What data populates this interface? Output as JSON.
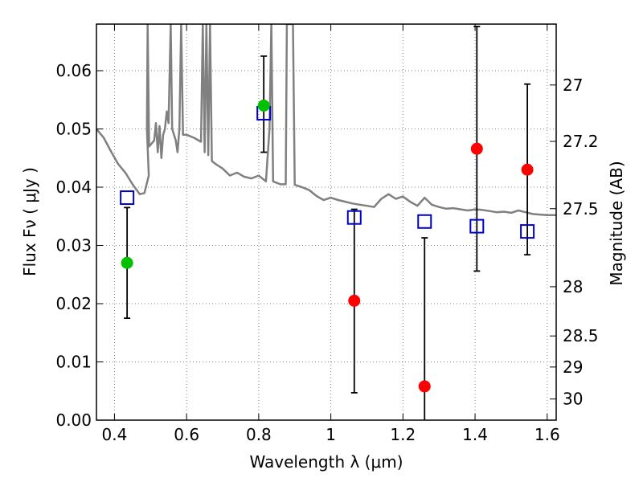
{
  "chart_data": {
    "type": "scatter",
    "xlabel": "Wavelength  λ (μm)",
    "ylabel": "Flux  Fν  ( μJy )",
    "y2label": "Magnitude (AB)",
    "xlim": [
      0.35,
      1.625
    ],
    "ylim": [
      0.0,
      0.068
    ],
    "grid": true,
    "x_ticks": [
      0.4,
      0.6,
      0.8,
      1.0,
      1.2,
      1.4,
      1.6
    ],
    "x_tick_labels": [
      "0.4",
      "0.6",
      "0.8",
      "1",
      "1.2",
      "1.4",
      "1.6"
    ],
    "y_ticks": [
      0.0,
      0.01,
      0.02,
      0.03,
      0.04,
      0.05,
      0.06
    ],
    "y_tick_labels": [
      "0.00",
      "0.01",
      "0.02",
      "0.03",
      "0.04",
      "0.05",
      "0.06"
    ],
    "mag_ticks": [
      27,
      27.2,
      27.5,
      28,
      28.5,
      29,
      30
    ],
    "mag_tick_labels": [
      "27",
      "27.2",
      "27.5",
      "28",
      "28.5",
      "29",
      "30"
    ],
    "colors": {
      "spectrum": "#808080",
      "green_points": "#00c000",
      "red_points": "#ff0000",
      "model_squares": "#0000cc",
      "errorbar": "#000000",
      "grid": "#808080"
    },
    "series": [
      {
        "marker": "circle",
        "color": "green",
        "points": [
          {
            "x": 0.435,
            "y": 0.027,
            "yerr_low": 0.0175,
            "yerr_high": 0.0365
          },
          {
            "x": 0.814,
            "y": 0.054,
            "yerr_low": 0.046,
            "yerr_high": 0.0625
          }
        ]
      },
      {
        "marker": "circle",
        "color": "red",
        "points": [
          {
            "x": 1.065,
            "y": 0.0205,
            "yerr_low": 0.0047,
            "yerr_high": 0.0362
          },
          {
            "x": 1.26,
            "y": 0.0058,
            "yerr_low": 0.0,
            "yerr_high": 0.0313
          },
          {
            "x": 1.405,
            "y": 0.0466,
            "yerr_low": 0.0256,
            "yerr_high": 0.0676
          },
          {
            "x": 1.545,
            "y": 0.043,
            "yerr_low": 0.0284,
            "yerr_high": 0.0577
          }
        ]
      },
      {
        "marker": "open-square",
        "color": "blue",
        "points": [
          {
            "x": 0.435,
            "y": 0.0382
          },
          {
            "x": 0.814,
            "y": 0.0527
          },
          {
            "x": 1.065,
            "y": 0.0348
          },
          {
            "x": 1.26,
            "y": 0.0341
          },
          {
            "x": 1.405,
            "y": 0.0333
          },
          {
            "x": 1.545,
            "y": 0.0324
          }
        ]
      },
      {
        "type": "line",
        "color": "gray",
        "points": [
          [
            0.35,
            0.05
          ],
          [
            0.37,
            0.0485
          ],
          [
            0.39,
            0.0462
          ],
          [
            0.41,
            0.044
          ],
          [
            0.43,
            0.0425
          ],
          [
            0.45,
            0.0405
          ],
          [
            0.47,
            0.0388
          ],
          [
            0.483,
            0.039
          ],
          [
            0.495,
            0.042
          ],
          [
            0.49,
            0.05
          ],
          [
            0.492,
            0.068
          ],
          [
            0.496,
            0.047
          ],
          [
            0.51,
            0.048
          ],
          [
            0.515,
            0.051
          ],
          [
            0.52,
            0.046
          ],
          [
            0.525,
            0.0505
          ],
          [
            0.53,
            0.045
          ],
          [
            0.535,
            0.049
          ],
          [
            0.54,
            0.05
          ],
          [
            0.545,
            0.053
          ],
          [
            0.55,
            0.051
          ],
          [
            0.556,
            0.068
          ],
          [
            0.56,
            0.05
          ],
          [
            0.565,
            0.049
          ],
          [
            0.57,
            0.048
          ],
          [
            0.575,
            0.046
          ],
          [
            0.58,
            0.05
          ],
          [
            0.585,
            0.068
          ],
          [
            0.59,
            0.049
          ],
          [
            0.6,
            0.049
          ],
          [
            0.62,
            0.0485
          ],
          [
            0.64,
            0.0478
          ],
          [
            0.645,
            0.068
          ],
          [
            0.65,
            0.046
          ],
          [
            0.655,
            0.068
          ],
          [
            0.66,
            0.0455
          ],
          [
            0.665,
            0.068
          ],
          [
            0.67,
            0.0445
          ],
          [
            0.68,
            0.044
          ],
          [
            0.7,
            0.0432
          ],
          [
            0.72,
            0.042
          ],
          [
            0.74,
            0.0425
          ],
          [
            0.76,
            0.0418
          ],
          [
            0.78,
            0.0415
          ],
          [
            0.8,
            0.042
          ],
          [
            0.82,
            0.041
          ],
          [
            0.83,
            0.05
          ],
          [
            0.835,
            0.068
          ],
          [
            0.84,
            0.041
          ],
          [
            0.86,
            0.0405
          ],
          [
            0.875,
            0.0405
          ],
          [
            0.878,
            0.068
          ],
          [
            0.884,
            0.068
          ],
          [
            0.89,
            0.068
          ],
          [
            0.895,
            0.068
          ],
          [
            0.9,
            0.0404
          ],
          [
            0.92,
            0.04
          ],
          [
            0.94,
            0.0395
          ],
          [
            0.96,
            0.0385
          ],
          [
            0.98,
            0.0378
          ],
          [
            1.0,
            0.0382
          ],
          [
            1.02,
            0.0378
          ],
          [
            1.04,
            0.0375
          ],
          [
            1.06,
            0.0372
          ],
          [
            1.08,
            0.037
          ],
          [
            1.1,
            0.0368
          ],
          [
            1.12,
            0.0366
          ],
          [
            1.14,
            0.038
          ],
          [
            1.16,
            0.0388
          ],
          [
            1.18,
            0.038
          ],
          [
            1.2,
            0.0384
          ],
          [
            1.22,
            0.0375
          ],
          [
            1.24,
            0.0368
          ],
          [
            1.26,
            0.0382
          ],
          [
            1.28,
            0.037
          ],
          [
            1.3,
            0.0366
          ],
          [
            1.32,
            0.0363
          ],
          [
            1.34,
            0.0364
          ],
          [
            1.36,
            0.0362
          ],
          [
            1.38,
            0.036
          ],
          [
            1.4,
            0.0362
          ],
          [
            1.42,
            0.0361
          ],
          [
            1.44,
            0.0359
          ],
          [
            1.46,
            0.0357
          ],
          [
            1.48,
            0.0358
          ],
          [
            1.5,
            0.0356
          ],
          [
            1.52,
            0.036
          ],
          [
            1.54,
            0.0357
          ],
          [
            1.56,
            0.0354
          ],
          [
            1.58,
            0.0353
          ],
          [
            1.6,
            0.0352
          ],
          [
            1.625,
            0.0352
          ]
        ]
      }
    ]
  }
}
